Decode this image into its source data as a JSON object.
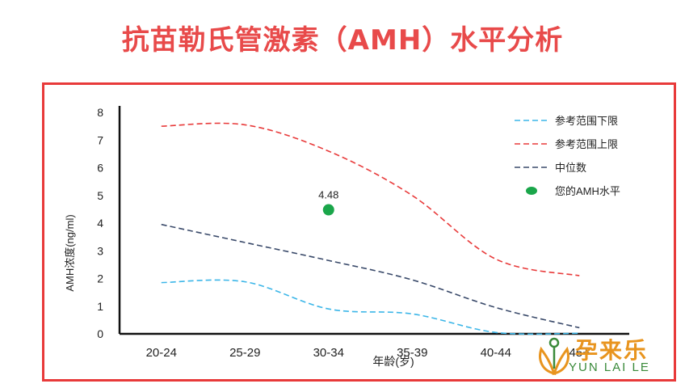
{
  "page": {
    "title": "抗苗勒氏管激素（AMH）水平分析"
  },
  "chart_data": {
    "type": "line",
    "categories": [
      "20-24",
      "25-29",
      "30-34",
      "35-39",
      "40-44",
      "45+"
    ],
    "xlabel": "年龄(岁)",
    "ylabel": "AMH浓度(ng/ml)",
    "ylim": [
      0,
      8
    ],
    "yticks": [
      "0",
      "1",
      "2",
      "3",
      "4",
      "5",
      "6",
      "7",
      "8"
    ],
    "grid": false,
    "legend_position": "top-right",
    "series": [
      {
        "name": "参考范围下限",
        "color": "#3cb6e8",
        "dash": "dashed",
        "values": [
          1.85,
          1.88,
          0.9,
          0.72,
          0.05,
          0.02
        ]
      },
      {
        "name": "参考范围上限",
        "color": "#e83a3a",
        "dash": "dashed",
        "values": [
          7.5,
          7.55,
          6.6,
          5.0,
          2.7,
          2.1
        ]
      },
      {
        "name": "中位数",
        "color": "#3a4a6a",
        "dash": "dashed",
        "values": [
          3.95,
          3.3,
          2.65,
          1.95,
          0.95,
          0.22
        ]
      }
    ],
    "points": [
      {
        "name": "您的AMH水平",
        "color": "#1aa64a",
        "x": 2,
        "y": 4.48,
        "label": "4.48"
      }
    ]
  },
  "logo": {
    "text_cn": "孕来乐",
    "text_en": "YUN LAI LE",
    "color": "#e8941e"
  }
}
